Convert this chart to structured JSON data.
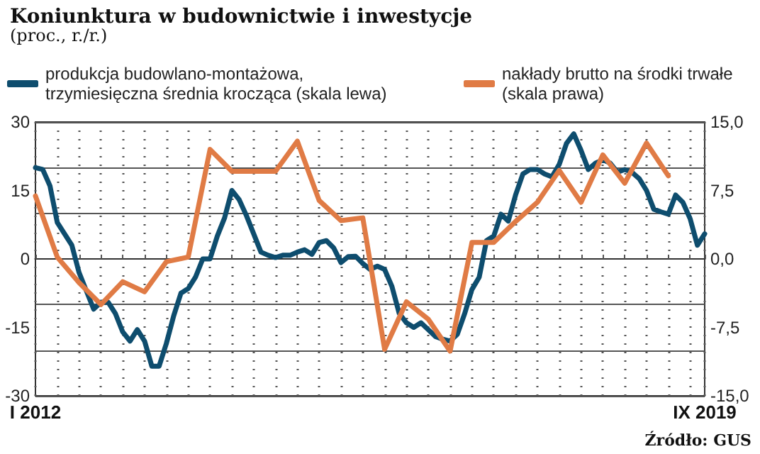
{
  "chart_data": {
    "type": "line",
    "title": "Koniunktura w budownictwie i inwestycje",
    "subtitle": "(proc., r./r.)",
    "categories": [
      "I 2012",
      null,
      null,
      null,
      null,
      null,
      null,
      null,
      null,
      null,
      null,
      null,
      null,
      null,
      null,
      null,
      null,
      null,
      null,
      null,
      null,
      null,
      null,
      null,
      null,
      null,
      null,
      null,
      null,
      null,
      null,
      null,
      null,
      null,
      null,
      null,
      null,
      null,
      null,
      null,
      null,
      null,
      null,
      null,
      null,
      null,
      null,
      null,
      null,
      null,
      null,
      null,
      null,
      null,
      null,
      null,
      null,
      null,
      null,
      null,
      null,
      null,
      null,
      null,
      null,
      null,
      null,
      null,
      null,
      null,
      null,
      null,
      null,
      null,
      null,
      null,
      null,
      null,
      null,
      null,
      null,
      null,
      null,
      null,
      null,
      null,
      null,
      null,
      null,
      null,
      null,
      null,
      "IX 2019"
    ],
    "series": [
      {
        "name": "produkcja budowlano-montażowa,\ntrzymiesięczna średnia krocząca (skala lewa)",
        "color": "#0e4d6e",
        "values": [
          20,
          19.6,
          16,
          8,
          5.5,
          3,
          -3,
          -7,
          -11,
          -9.5,
          -9.5,
          -12,
          -16,
          -18,
          -15.5,
          -18,
          -23.5,
          -23.5,
          -18.5,
          -12.5,
          -7.5,
          -6.5,
          -4,
          0,
          0,
          5,
          9,
          15,
          13,
          9.5,
          5.5,
          1.5,
          0.8,
          0.3,
          0.8,
          0.8,
          1.5,
          2,
          1,
          3.6,
          4,
          2.4,
          -0.8,
          0.5,
          0.6,
          -1,
          -2.3,
          -1.6,
          -2.3,
          -6,
          -11.9,
          -14,
          -15,
          -14,
          -15.5,
          -17,
          -17.6,
          -18,
          -16.5,
          -12,
          -6.7,
          -4,
          4,
          5,
          9.8,
          8.3,
          14,
          18.6,
          19.6,
          19.6,
          18.6,
          18,
          20.7,
          25.3,
          27.4,
          23.8,
          19.6,
          21,
          21.7,
          21,
          19,
          19.6,
          19,
          17.6,
          15,
          10.9,
          10.3,
          9.8,
          14,
          12.4,
          8.8,
          3,
          5.5
        ]
      },
      {
        "name": "nakłady brutto na środki trwałe\n(skala prawa)",
        "color": "#e07b45",
        "axis": "y2",
        "values": [
          6.9,
          null,
          null,
          0.2,
          null,
          null,
          -2.6,
          null,
          null,
          -5,
          null,
          null,
          -2.5,
          null,
          null,
          -3.6,
          null,
          null,
          -0.3,
          null,
          null,
          0.2,
          null,
          null,
          12,
          null,
          null,
          9.6,
          null,
          null,
          9.6,
          null,
          null,
          9.6,
          null,
          null,
          12.9,
          null,
          null,
          6.4,
          null,
          null,
          4.2,
          null,
          null,
          4.5,
          null,
          null,
          -9.9,
          null,
          null,
          -4.7,
          null,
          null,
          -6.6,
          null,
          null,
          -10.1,
          null,
          null,
          1.8,
          null,
          null,
          1.8,
          null,
          null,
          4.1,
          null,
          null,
          6.2,
          null,
          null,
          9.7,
          null,
          null,
          6.2,
          null,
          null,
          11.4,
          null,
          null,
          8.3,
          null,
          null,
          12.7,
          null,
          null,
          9.1,
          null,
          null,
          null,
          null,
          null
        ]
      }
    ],
    "ylim": [
      -30,
      30
    ],
    "yticks": [
      -30,
      -15,
      0,
      15,
      30
    ],
    "y2lim": [
      -15,
      15
    ],
    "y2ticks": [
      {
        "value": -15,
        "label": "-15,0"
      },
      {
        "value": -7.5,
        "label": "-7,5"
      },
      {
        "value": 0,
        "label": "0,0"
      },
      {
        "value": 7.5,
        "label": "7,5"
      },
      {
        "value": 15,
        "label": "15,0"
      }
    ],
    "grid": true,
    "legend": "top",
    "marker": "none",
    "line_style": "solid",
    "annotations": [
      "Źródło: GUS"
    ]
  }
}
